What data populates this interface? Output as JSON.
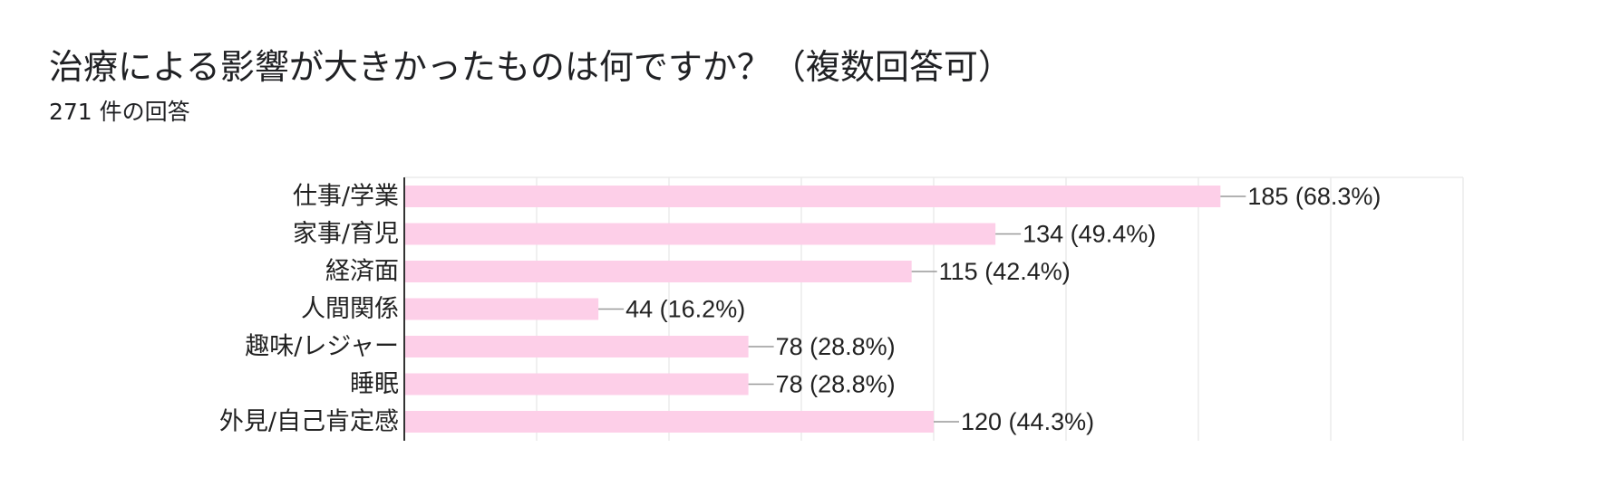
{
  "title": "治療による影響が大きかったものは何ですか？（複数回答可）",
  "subtitle": "271 件の回答",
  "colors": {
    "bar": "#fdcfe8",
    "axis": "#333333",
    "grid": "#ebebeb",
    "leader": "#999999",
    "text": "#222222"
  },
  "chart_data": {
    "type": "bar",
    "orientation": "horizontal",
    "title": "治療による影響が大きかったものは何ですか？（複数回答可）",
    "subtitle": "271 件の回答",
    "categories": [
      "仕事/学業",
      "家事/育児",
      "経済面",
      "人間関係",
      "趣味/レジャー",
      "睡眠",
      "外見/自己肯定感"
    ],
    "values": [
      185,
      134,
      115,
      44,
      78,
      78,
      120
    ],
    "value_labels": [
      "185 (68.3%)",
      "134 (49.4%)",
      "115 (42.4%)",
      "44 (16.2%)",
      "78 (28.8%)",
      "78 (28.8%)",
      "120 (44.3%)"
    ],
    "xlim": [
      0,
      240
    ],
    "grid_step": 30,
    "grid": true,
    "xlabel": "",
    "ylabel": ""
  }
}
